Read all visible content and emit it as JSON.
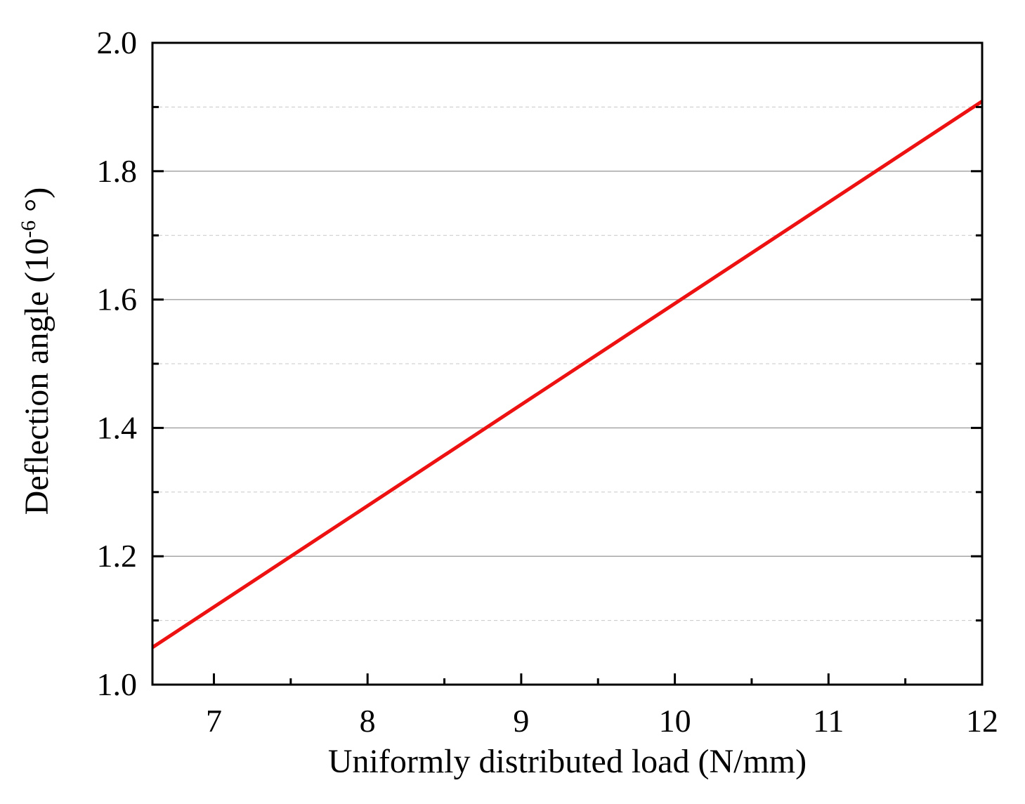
{
  "chart_data": {
    "type": "line",
    "xlabel": "Uniformly distributed load (N/mm)",
    "ylabel_main": "Deflection angle (10",
    "ylabel_sup": "-6",
    "ylabel_tail": " °)",
    "xlim": [
      6.6,
      12
    ],
    "ylim": [
      1.0,
      2.0
    ],
    "x_ticks": [
      7,
      8,
      9,
      10,
      11,
      12
    ],
    "x_tick_labels": [
      "7",
      "8",
      "9",
      "10",
      "11",
      "12"
    ],
    "x_minor_ticks": [
      7.5,
      8.5,
      9.5,
      10.5,
      11.5
    ],
    "y_ticks": [
      1.0,
      1.2,
      1.4,
      1.6,
      1.8,
      2.0
    ],
    "y_tick_labels": [
      "1.0",
      "1.2",
      "1.4",
      "1.6",
      "1.8",
      "2.0"
    ],
    "y_minor_ticks": [
      1.1,
      1.3,
      1.5,
      1.7,
      1.9
    ],
    "grid": true,
    "series": [
      {
        "color": "#ee1111",
        "x": [
          6.6,
          12
        ],
        "y": [
          1.058,
          1.909
        ]
      }
    ]
  }
}
